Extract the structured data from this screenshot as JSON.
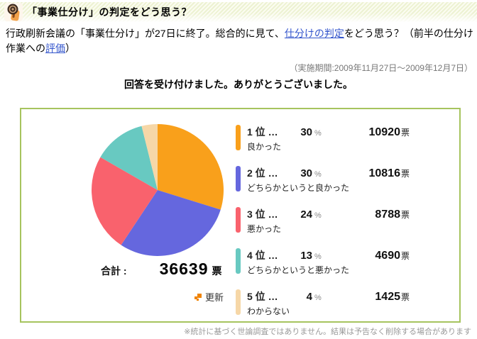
{
  "header": {
    "title": "「事業仕分け」の判定をどう思う？",
    "period": "（実施期間:2009年11月27日～2009年12月7日）"
  },
  "intro": {
    "part1": "行政刷新会議の「事業仕分け」が27日に終了。総合的に見て、",
    "link1": "仕分けの判定",
    "part2": "をどう思う？（前半の仕分け作業への",
    "link2": "評価",
    "part3": "）"
  },
  "message": "回答を受け付けました。ありがとうございました。",
  "total": {
    "label": "合計 :",
    "value": "36639",
    "unit": "票"
  },
  "refresh": {
    "label": "更新"
  },
  "disclaimer": "※統計に基づく世論調査ではありません。結果は予告なく削除する場合があります",
  "colors": {
    "box_border": "#a6c45e",
    "link": "#3355cc",
    "refresh_icon": "#f08300",
    "header_stripe": "#edf2d2"
  },
  "chart_data": {
    "type": "pie",
    "title": "「事業仕分け」の判定をどう思う？",
    "total_votes": 36639,
    "percent_sign": "%",
    "votes_unit": "票",
    "legend_position": "right",
    "start_angle_deg": -90,
    "direction": "clockwise",
    "slices": [
      {
        "rank": "1 位 …",
        "label": "良かった",
        "percent": 30,
        "votes": 10920,
        "color": "#f9a01b"
      },
      {
        "rank": "2 位 …",
        "label": "どちらかというと良かった",
        "percent": 30,
        "votes": 10816,
        "color": "#6567de"
      },
      {
        "rank": "3 位 …",
        "label": "悪かった",
        "percent": 24,
        "votes": 8788,
        "color": "#f9626d"
      },
      {
        "rank": "4 位 …",
        "label": "どちらかというと悪かった",
        "percent": 13,
        "votes": 4690,
        "color": "#68c9c1"
      },
      {
        "rank": "5 位 …",
        "label": "わからない",
        "percent": 4,
        "votes": 1425,
        "color": "#f6d7a7"
      }
    ]
  }
}
